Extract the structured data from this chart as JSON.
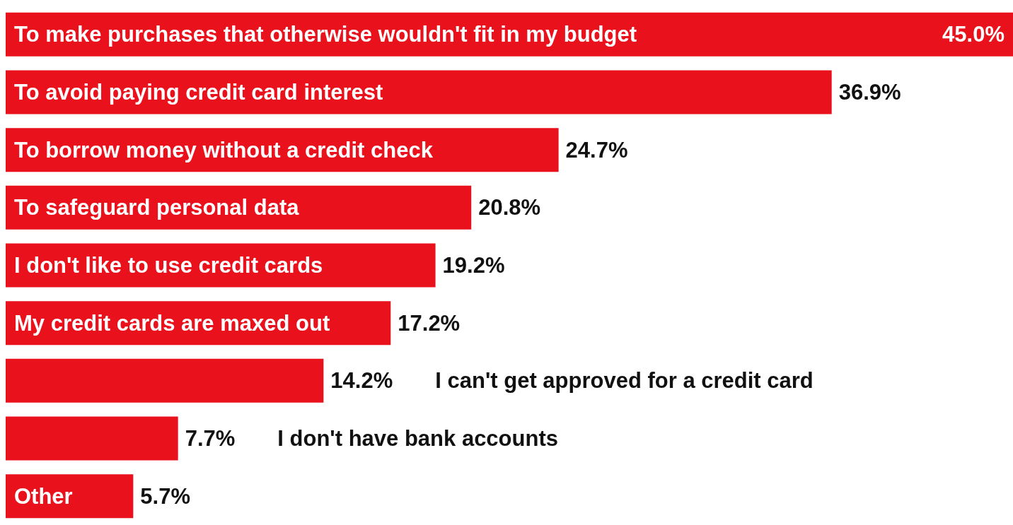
{
  "chart_data": {
    "type": "bar",
    "orientation": "horizontal",
    "categories": [
      "To make purchases that otherwise wouldn't fit in my budget",
      "To avoid paying credit card interest",
      "To borrow money without a credit check",
      "To safeguard personal data",
      "I don't like to use credit cards",
      "My credit cards are maxed out",
      "I can't get approved for a credit card",
      "I don't have bank accounts",
      "Other"
    ],
    "values": [
      45.0,
      36.9,
      24.7,
      20.8,
      19.2,
      17.2,
      14.2,
      7.7,
      5.7
    ],
    "value_labels": [
      "45.0%",
      "36.9%",
      "24.7%",
      "20.8%",
      "19.2%",
      "17.2%",
      "14.2%",
      "7.7%",
      "5.7%"
    ],
    "color": "#e8111c",
    "grid": false,
    "legend": false
  }
}
